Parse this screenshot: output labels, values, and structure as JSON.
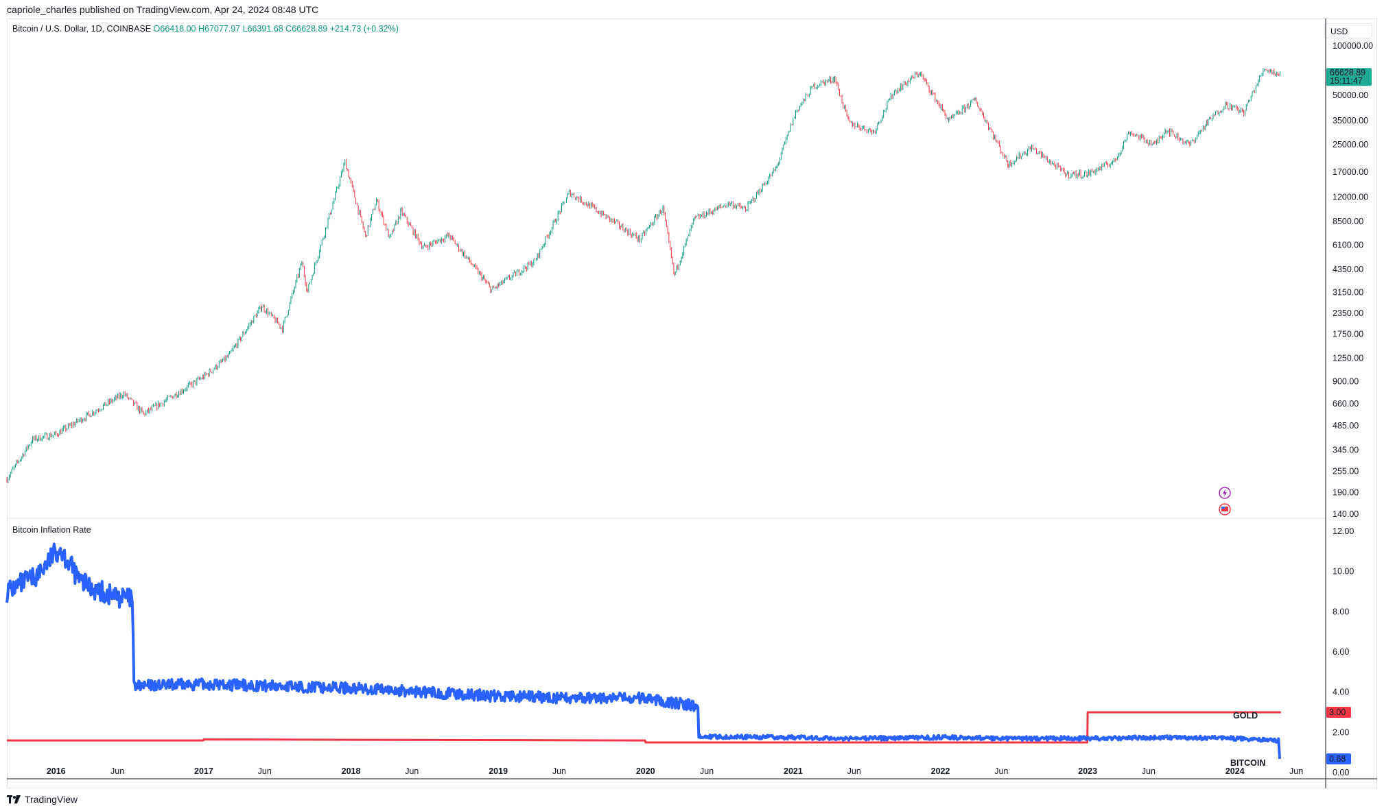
{
  "header": {
    "text": "capriole_charles published on TradingView.com, Apr 24, 2024 08:48 UTC"
  },
  "legend": {
    "symbol": "Bitcoin / U.S. Dollar, 1D, COINBASE",
    "ohlc": "O66418.00  H67077.97  L66391.68  C66628.89  +214.73 (+0.32%)"
  },
  "price_scale": {
    "currency": "USD"
  },
  "last_price": {
    "value": "66628.89",
    "countdown": "15:11:47"
  },
  "indicator": {
    "title": "Bitcoin Inflation Rate"
  },
  "series_labels": {
    "gold": "GOLD",
    "bitcoin": "BITCOIN"
  },
  "series_values": {
    "gold": "3.00",
    "bitcoin": "0.68"
  },
  "footer": {
    "brand": "TradingView"
  },
  "icons": [
    "lightning-event-icon",
    "us-flag-event-icon",
    "tradingview-logo-icon"
  ],
  "colors": {
    "up": "#089981",
    "down": "#f23645",
    "bitcoin": "#2962ff",
    "gold": "#f23645",
    "price_tag": "#22ab94"
  },
  "chart_data": [
    {
      "type": "candlestick",
      "title": "Bitcoin / U.S. Dollar, 1D, COINBASE",
      "scale": "log",
      "ylim": [
        140,
        100000
      ],
      "y_ticks": [
        "100000.00",
        "50000.00",
        "35000.00",
        "25000.00",
        "17000.00",
        "12000.00",
        "8500.00",
        "6100.00",
        "4350.00",
        "3150.00",
        "2350.00",
        "1750.00",
        "1250.00",
        "900.00",
        "660.00",
        "485.00",
        "345.00",
        "255.00",
        "190.00",
        "140.00"
      ],
      "x_ticks": [
        "2016",
        "Jun",
        "2017",
        "Jun",
        "2018",
        "Jun",
        "2019",
        "Jun",
        "2020",
        "Jun",
        "2021",
        "Jun",
        "2022",
        "Jun",
        "2023",
        "Jun",
        "2024",
        "Jun"
      ],
      "xlim": [
        "2015-09-01",
        "2024-08-01"
      ],
      "series": [
        {
          "name": "BTCUSD",
          "x": [
            "2015-09-01",
            "2015-11-04",
            "2016-01-01",
            "2016-06-17",
            "2016-08-05",
            "2016-12-31",
            "2017-03-03",
            "2017-05-25",
            "2017-07-15",
            "2017-09-01",
            "2017-09-15",
            "2017-12-17",
            "2018-02-06",
            "2018-03-05",
            "2018-04-07",
            "2018-05-05",
            "2018-06-29",
            "2018-09-01",
            "2018-11-25",
            "2018-12-15",
            "2019-04-02",
            "2019-06-26",
            "2019-09-01",
            "2019-12-18",
            "2020-02-13",
            "2020-03-12",
            "2020-05-01",
            "2020-07-27",
            "2020-09-05",
            "2020-11-20",
            "2021-01-08",
            "2021-02-21",
            "2021-04-14",
            "2021-05-19",
            "2021-07-20",
            "2021-09-06",
            "2021-11-10",
            "2022-01-22",
            "2022-03-28",
            "2022-06-18",
            "2022-08-15",
            "2022-11-09",
            "2022-12-31",
            "2023-03-10",
            "2023-04-14",
            "2023-06-15",
            "2023-07-14",
            "2023-09-11",
            "2023-10-24",
            "2023-12-08",
            "2024-01-23",
            "2024-03-14",
            "2024-04-24"
          ],
          "values": [
            230,
            400,
            430,
            760,
            570,
            960,
            1280,
            2600,
            1900,
            4800,
            3200,
            19700,
            6900,
            11500,
            6700,
            9800,
            5900,
            7000,
            3800,
            3250,
            4900,
            12800,
            10000,
            6600,
            10300,
            4000,
            8800,
            11000,
            10100,
            18000,
            40000,
            57000,
            63500,
            34000,
            30000,
            52000,
            68800,
            35000,
            47000,
            19000,
            24000,
            16500,
            16550,
            20000,
            30000,
            25000,
            31000,
            25000,
            34000,
            44000,
            39500,
            73000,
            66628.89
          ]
        }
      ]
    },
    {
      "type": "line",
      "title": "Bitcoin Inflation Rate",
      "ylim": [
        0,
        12
      ],
      "y_ticks": [
        "12.00",
        "10.00",
        "8.00",
        "6.00",
        "4.00",
        "2.00",
        "0.00"
      ],
      "series": [
        {
          "name": "BITCOIN",
          "x": [
            "2015-09-01",
            "2015-11-15",
            "2016-01-10",
            "2016-03-01",
            "2016-05-01",
            "2016-07-08",
            "2016-07-12",
            "2017-01-01",
            "2017-07-01",
            "2018-01-01",
            "2018-07-01",
            "2019-01-01",
            "2019-07-01",
            "2020-01-01",
            "2020-05-10",
            "2020-05-12",
            "2021-01-01",
            "2021-06-01",
            "2022-01-01",
            "2022-07-01",
            "2023-01-01",
            "2023-07-01",
            "2024-01-01",
            "2024-04-18",
            "2024-04-21"
          ],
          "values": [
            9.0,
            9.8,
            11.2,
            9.5,
            8.9,
            8.6,
            4.3,
            4.4,
            4.3,
            4.2,
            4.0,
            3.8,
            3.7,
            3.7,
            3.3,
            1.8,
            1.75,
            1.7,
            1.75,
            1.7,
            1.7,
            1.75,
            1.7,
            1.6,
            0.68
          ]
        },
        {
          "name": "GOLD",
          "x": [
            "2015-09-01",
            "2016-12-31",
            "2017-01-01",
            "2019-12-31",
            "2020-01-01",
            "2022-12-31",
            "2023-01-01",
            "2024-04-24"
          ],
          "values": [
            1.6,
            1.6,
            1.65,
            1.6,
            1.5,
            1.5,
            3.0,
            3.0
          ]
        }
      ]
    }
  ]
}
